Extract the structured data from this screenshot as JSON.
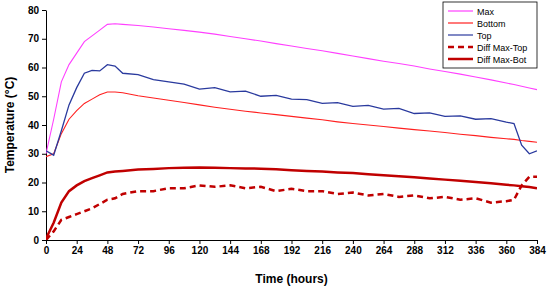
{
  "chart_data": {
    "type": "line",
    "x_label": "Time (hours)",
    "y_label": "Temperature (°C)",
    "x": [
      0,
      6,
      12,
      18,
      24,
      30,
      36,
      42,
      48,
      54,
      60,
      72,
      84,
      96,
      108,
      120,
      132,
      144,
      156,
      168,
      180,
      192,
      204,
      216,
      228,
      240,
      252,
      264,
      276,
      288,
      300,
      312,
      324,
      336,
      348,
      360,
      366,
      372,
      378,
      384
    ],
    "xlim": [
      0,
      384
    ],
    "xticks": [
      0,
      24,
      48,
      72,
      96,
      120,
      144,
      168,
      192,
      216,
      240,
      264,
      288,
      312,
      336,
      360,
      384
    ],
    "ylim": [
      0,
      80
    ],
    "yticks": [
      0,
      10,
      20,
      30,
      40,
      50,
      60,
      70,
      80
    ],
    "grid": false,
    "legend": "upper right",
    "series": [
      {
        "name": "Max",
        "color": "#ff40ff",
        "line_style": "solid",
        "values": [
          30,
          42,
          55,
          61,
          65,
          69,
          71,
          73,
          75,
          75.2,
          75,
          74.6,
          74.1,
          73.5,
          72.9,
          72.3,
          71.6,
          70.8,
          70,
          69.2,
          68.3,
          67.5,
          66.6,
          65.8,
          64.9,
          64,
          63.1,
          62.2,
          61.4,
          60.5,
          59.5,
          58.6,
          57.7,
          56.7,
          55.7,
          54.6,
          54.1,
          53.5,
          52.9,
          52.3
        ]
      },
      {
        "name": "Bottom",
        "color": "#ff2020",
        "line_style": "solid",
        "values": [
          29,
          30,
          37,
          42,
          45,
          47.5,
          49,
          50.5,
          51.5,
          51.5,
          51.2,
          50.2,
          49.4,
          48.6,
          47.8,
          47,
          46.2,
          45.5,
          44.8,
          44.2,
          43.6,
          43,
          42.4,
          41.8,
          41.1,
          40.5,
          40,
          39.5,
          38.9,
          38.4,
          37.9,
          37.4,
          36.8,
          36.3,
          35.7,
          35.2,
          35,
          34.6,
          34.3,
          34
        ]
      },
      {
        "name": "Top",
        "color": "#2a3a9e",
        "line_style": "solid",
        "values": [
          31,
          29.5,
          38,
          47,
          53,
          58,
          59,
          58.8,
          61,
          60.5,
          58,
          57.5,
          55.8,
          55,
          54.2,
          52.5,
          53,
          51.5,
          51.8,
          50,
          50.3,
          49,
          48.8,
          47.5,
          47.8,
          46.5,
          46.8,
          45.5,
          45.8,
          44,
          44.2,
          43,
          43.2,
          42,
          42.2,
          41,
          40.5,
          33,
          30,
          31
        ]
      },
      {
        "name": "Diff Max-Top",
        "color": "#c00000",
        "line_style": "dashed",
        "values": [
          0,
          3,
          7,
          8,
          9,
          10,
          11,
          12.5,
          14,
          14.5,
          16,
          17,
          17,
          18,
          18,
          19,
          18.5,
          19,
          18,
          18.5,
          17,
          17.8,
          17,
          17,
          16,
          16.5,
          15.5,
          16,
          15,
          15.5,
          14.5,
          15,
          14,
          14.5,
          13,
          13.5,
          14,
          19,
          22,
          22
        ]
      },
      {
        "name": "Diff Max-Bot",
        "color": "#c00000",
        "line_style": "solid",
        "values": [
          0.5,
          6,
          13,
          17,
          19,
          20.5,
          21.5,
          22.5,
          23.5,
          23.8,
          24,
          24.5,
          24.7,
          25,
          25.1,
          25.2,
          25.1,
          25,
          24.9,
          24.8,
          24.6,
          24.3,
          24,
          23.8,
          23.5,
          23.3,
          22.9,
          22.5,
          22.2,
          21.8,
          21.4,
          21,
          20.6,
          20.2,
          19.7,
          19.2,
          19,
          18.7,
          18.4,
          18
        ]
      }
    ]
  }
}
